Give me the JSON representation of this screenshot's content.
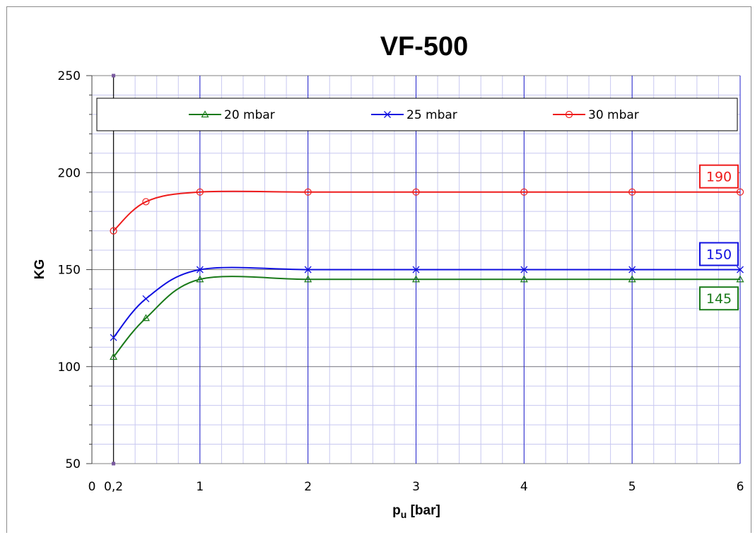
{
  "chart_data": {
    "type": "line",
    "title": "VF-500",
    "ylabel": "KG",
    "xlabel_main": "p",
    "xlabel_sub": "u",
    "xlabel_unit": " [bar]",
    "xlim": [
      0,
      6
    ],
    "ylim": [
      50,
      250
    ],
    "x_ticks": [
      0,
      0.2,
      1,
      2,
      3,
      4,
      5,
      6
    ],
    "x_tick_labels": [
      "0",
      "0,2",
      "1",
      "2",
      "3",
      "4",
      "5",
      "6"
    ],
    "y_ticks": [
      50,
      100,
      150,
      200,
      250
    ],
    "y_tick_labels": [
      "50",
      "100",
      "150",
      "200",
      "250"
    ],
    "grid": true,
    "legend_position": "top",
    "x": [
      0.2,
      0.5,
      1,
      2,
      3,
      4,
      5,
      6
    ],
    "series": [
      {
        "name": "20 mbar",
        "color": "#1a7a1a",
        "marker": "triangle",
        "values": [
          105,
          125,
          145,
          145,
          145,
          145,
          145,
          145
        ],
        "end_label": "145"
      },
      {
        "name": "25 mbar",
        "color": "#1010e0",
        "marker": "x",
        "values": [
          115,
          135,
          150,
          150,
          150,
          150,
          150,
          150
        ],
        "end_label": "150"
      },
      {
        "name": "30 mbar",
        "color": "#ee1c1c",
        "marker": "circle",
        "values": [
          170,
          185,
          190,
          190,
          190,
          190,
          190,
          190
        ],
        "end_label": "190"
      }
    ]
  }
}
